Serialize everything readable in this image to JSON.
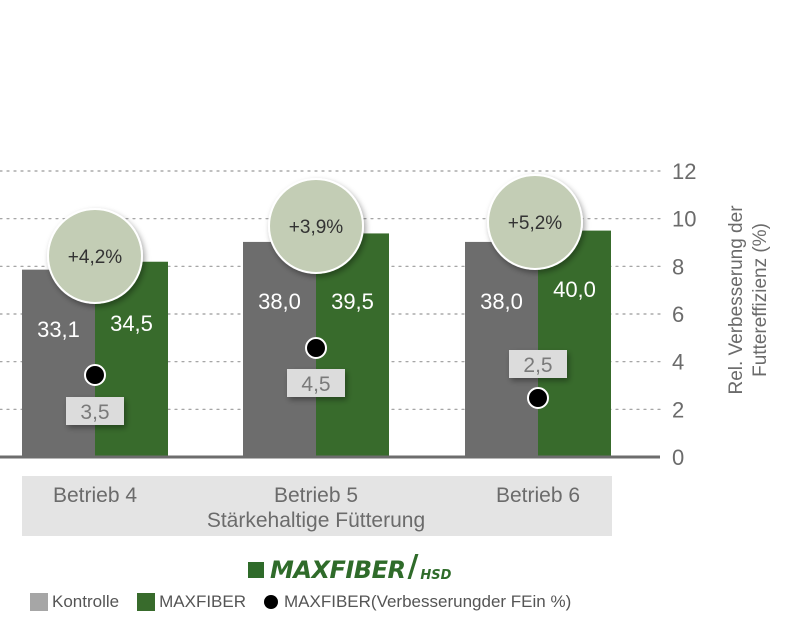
{
  "chart_data": {
    "type": "bar",
    "categories": [
      "Betrieb 4",
      "Betrieb 5",
      "Betrieb 6"
    ],
    "group_label": "Stärkehaltige Fütterung",
    "series": [
      {
        "name": "Kontrolle",
        "values": [
          33.1,
          38.0,
          38.0
        ],
        "labels": [
          "33,1",
          "38,0",
          "38,0"
        ],
        "color": "#6d6d6d"
      },
      {
        "name": "MAXFIBER",
        "values": [
          34.5,
          39.5,
          40.0
        ],
        "labels": [
          "34,5",
          "39,5",
          "40,0"
        ],
        "color": "#386b2c"
      }
    ],
    "improvement": {
      "name": "MAXFIBER(Verbesserungder FEin %)",
      "values": [
        3.5,
        4.5,
        2.5
      ],
      "labels": [
        "3,5",
        "4,5",
        "2,5"
      ],
      "point_y": [
        3.5,
        4.6,
        2.5
      ]
    },
    "bubbles": [
      "+4,2%",
      "+3,9%",
      "+5,2%"
    ],
    "ylabel": "Rel. Verbesserung der Futtereffizienz (%)",
    "ylabel_lines": [
      "Rel. Verbesserung der",
      "Futtereffizienz (%)"
    ],
    "ylim": [
      0,
      12
    ],
    "yticks": [
      0,
      2,
      4,
      6,
      8,
      10,
      12
    ],
    "grid": true,
    "legend_position": "bottom",
    "colors": {
      "kontrolle": "#6d6d6d",
      "maxfiber": "#386b2c",
      "bubble": "#c3cdb5",
      "legend_grey": "#a6a6a6"
    }
  },
  "brand": {
    "main": "MAXFIBER",
    "slash": "/",
    "sub": "HSD"
  },
  "legend": {
    "kontrolle": "Kontrolle",
    "maxfiber": "MAXFIBER",
    "improvement": "MAXFIBER(Verbesserungder FEin %)"
  }
}
